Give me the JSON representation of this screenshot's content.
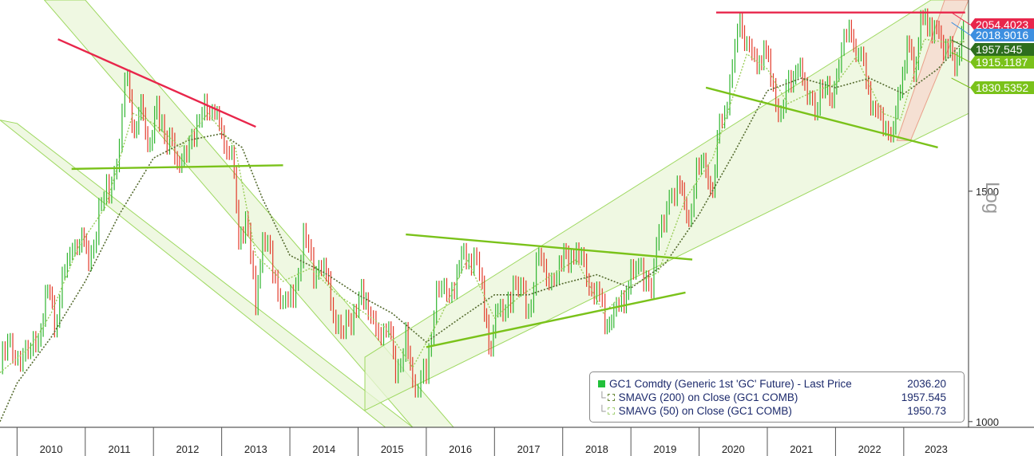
{
  "chart_data": {
    "type": "line",
    "ticker": "GC1 Comdty",
    "scale_label": "Log",
    "x_labels": [
      "2010",
      "2011",
      "2012",
      "2013",
      "2014",
      "2015",
      "2016",
      "2017",
      "2018",
      "2019",
      "2020",
      "2021",
      "2022",
      "2023"
    ],
    "y_ticks": [
      1000,
      1500
    ],
    "y_tick_labels": [
      "1000",
      "1500"
    ],
    "ylim": [
      990,
      2100
    ],
    "xlim": [
      2009.75,
      2023.95
    ],
    "price_series": {
      "name": "GC1 Comdty (Generic 1st 'GC' Future) - Last Price",
      "value_label": "2036.20",
      "points": [
        [
          2009.75,
          1100
        ],
        [
          2009.9,
          1150
        ],
        [
          2010.05,
          1110
        ],
        [
          2010.2,
          1120
        ],
        [
          2010.35,
          1200
        ],
        [
          2010.45,
          1240
        ],
        [
          2010.55,
          1190
        ],
        [
          2010.7,
          1300
        ],
        [
          2010.85,
          1380
        ],
        [
          2010.95,
          1390
        ],
        [
          2011.05,
          1340
        ],
        [
          2011.2,
          1440
        ],
        [
          2011.35,
          1520
        ],
        [
          2011.5,
          1620
        ],
        [
          2011.62,
          1880
        ],
        [
          2011.72,
          1630
        ],
        [
          2011.85,
          1760
        ],
        [
          2011.95,
          1590
        ],
        [
          2012.05,
          1740
        ],
        [
          2012.2,
          1660
        ],
        [
          2012.35,
          1560
        ],
        [
          2012.45,
          1610
        ],
        [
          2012.6,
          1620
        ],
        [
          2012.75,
          1780
        ],
        [
          2012.9,
          1700
        ],
        [
          2013.0,
          1680
        ],
        [
          2013.15,
          1580
        ],
        [
          2013.25,
          1400
        ],
        [
          2013.35,
          1420
        ],
        [
          2013.5,
          1240
        ],
        [
          2013.6,
          1370
        ],
        [
          2013.75,
          1320
        ],
        [
          2013.9,
          1220
        ],
        [
          2014.05,
          1250
        ],
        [
          2014.2,
          1380
        ],
        [
          2014.35,
          1300
        ],
        [
          2014.5,
          1330
        ],
        [
          2014.6,
          1220
        ],
        [
          2014.75,
          1200
        ],
        [
          2014.9,
          1170
        ],
        [
          2015.05,
          1290
        ],
        [
          2015.15,
          1200
        ],
        [
          2015.3,
          1180
        ],
        [
          2015.45,
          1170
        ],
        [
          2015.55,
          1090
        ],
        [
          2015.7,
          1150
        ],
        [
          2015.8,
          1080
        ],
        [
          2015.92,
          1060
        ],
        [
          2016.0,
          1100
        ],
        [
          2016.15,
          1240
        ],
        [
          2016.3,
          1260
        ],
        [
          2016.45,
          1280
        ],
        [
          2016.55,
          1360
        ],
        [
          2016.7,
          1330
        ],
        [
          2016.82,
          1250
        ],
        [
          2016.95,
          1140
        ],
        [
          2017.05,
          1210
        ],
        [
          2017.2,
          1250
        ],
        [
          2017.35,
          1260
        ],
        [
          2017.5,
          1220
        ],
        [
          2017.65,
          1330
        ],
        [
          2017.8,
          1280
        ],
        [
          2017.95,
          1300
        ],
        [
          2018.05,
          1350
        ],
        [
          2018.2,
          1340
        ],
        [
          2018.35,
          1300
        ],
        [
          2018.5,
          1250
        ],
        [
          2018.62,
          1190
        ],
        [
          2018.75,
          1200
        ],
        [
          2018.9,
          1240
        ],
        [
          2019.0,
          1290
        ],
        [
          2019.15,
          1300
        ],
        [
          2019.3,
          1280
        ],
        [
          2019.45,
          1400
        ],
        [
          2019.6,
          1520
        ],
        [
          2019.72,
          1500
        ],
        [
          2019.85,
          1460
        ],
        [
          2020.0,
          1560
        ],
        [
          2020.1,
          1580
        ],
        [
          2020.2,
          1480
        ],
        [
          2020.3,
          1700
        ],
        [
          2020.45,
          1800
        ],
        [
          2020.6,
          2050
        ],
        [
          2020.7,
          1930
        ],
        [
          2020.85,
          1880
        ],
        [
          2020.95,
          1890
        ],
        [
          2021.05,
          1850
        ],
        [
          2021.2,
          1700
        ],
        [
          2021.35,
          1830
        ],
        [
          2021.45,
          1900
        ],
        [
          2021.55,
          1780
        ],
        [
          2021.7,
          1760
        ],
        [
          2021.85,
          1780
        ],
        [
          2021.95,
          1800
        ],
        [
          2022.05,
          1830
        ],
        [
          2022.2,
          2040
        ],
        [
          2022.3,
          1900
        ],
        [
          2022.45,
          1840
        ],
        [
          2022.55,
          1720
        ],
        [
          2022.7,
          1700
        ],
        [
          2022.85,
          1640
        ],
        [
          2022.95,
          1800
        ],
        [
          2023.05,
          1940
        ],
        [
          2023.15,
          1860
        ],
        [
          2023.25,
          2000
        ],
        [
          2023.35,
          2040
        ],
        [
          2023.45,
          1970
        ],
        [
          2023.55,
          1930
        ],
        [
          2023.65,
          1960
        ],
        [
          2023.75,
          1840
        ],
        [
          2023.85,
          1990
        ],
        [
          2023.9,
          2036
        ]
      ]
    },
    "sma200": {
      "name": "SMAVG (200)  on Close (GC1 COMB)",
      "value_label": "1957.545",
      "points": [
        [
          2009.75,
          1000
        ],
        [
          2010.0,
          1070
        ],
        [
          2010.5,
          1160
        ],
        [
          2011.0,
          1280
        ],
        [
          2011.5,
          1440
        ],
        [
          2012.0,
          1590
        ],
        [
          2012.5,
          1640
        ],
        [
          2013.0,
          1660
        ],
        [
          2013.3,
          1620
        ],
        [
          2013.6,
          1480
        ],
        [
          2014.0,
          1340
        ],
        [
          2014.5,
          1300
        ],
        [
          2015.0,
          1250
        ],
        [
          2015.5,
          1210
        ],
        [
          2016.0,
          1150
        ],
        [
          2016.5,
          1200
        ],
        [
          2017.0,
          1250
        ],
        [
          2017.5,
          1250
        ],
        [
          2018.0,
          1275
        ],
        [
          2018.5,
          1295
        ],
        [
          2019.0,
          1265
        ],
        [
          2019.5,
          1320
        ],
        [
          2020.0,
          1440
        ],
        [
          2020.5,
          1600
        ],
        [
          2021.0,
          1790
        ],
        [
          2021.5,
          1830
        ],
        [
          2022.0,
          1800
        ],
        [
          2022.5,
          1830
        ],
        [
          2023.0,
          1780
        ],
        [
          2023.5,
          1860
        ],
        [
          2023.9,
          1958
        ]
      ]
    },
    "sma50": {
      "name": "SMAVG (50)  on Close (GC1 COMB)",
      "value_label": "1950.73",
      "points": [
        [
          2009.75,
          1090
        ],
        [
          2010.2,
          1140
        ],
        [
          2010.5,
          1210
        ],
        [
          2010.9,
          1360
        ],
        [
          2011.3,
          1460
        ],
        [
          2011.7,
          1720
        ],
        [
          2012.0,
          1690
        ],
        [
          2012.4,
          1620
        ],
        [
          2012.8,
          1720
        ],
        [
          2013.2,
          1620
        ],
        [
          2013.5,
          1340
        ],
        [
          2013.9,
          1280
        ],
        [
          2014.3,
          1310
        ],
        [
          2014.7,
          1250
        ],
        [
          2015.0,
          1220
        ],
        [
          2015.4,
          1180
        ],
        [
          2015.8,
          1100
        ],
        [
          2016.2,
          1200
        ],
        [
          2016.6,
          1330
        ],
        [
          2017.0,
          1200
        ],
        [
          2017.4,
          1250
        ],
        [
          2017.8,
          1290
        ],
        [
          2018.2,
          1330
        ],
        [
          2018.6,
          1210
        ],
        [
          2019.0,
          1270
        ],
        [
          2019.4,
          1300
        ],
        [
          2019.8,
          1480
        ],
        [
          2020.2,
          1590
        ],
        [
          2020.7,
          1910
        ],
        [
          2021.0,
          1860
        ],
        [
          2021.3,
          1750
        ],
        [
          2021.7,
          1790
        ],
        [
          2022.0,
          1810
        ],
        [
          2022.3,
          1900
        ],
        [
          2022.7,
          1720
        ],
        [
          2022.95,
          1700
        ],
        [
          2023.3,
          1960
        ],
        [
          2023.6,
          1950
        ],
        [
          2023.9,
          1951
        ]
      ]
    },
    "level_labels": [
      {
        "value": 2054.4023,
        "label": "2054.4023",
        "color": "#e8264b"
      },
      {
        "value": 2018.9016,
        "label": "2018.9016",
        "color": "#3d8fe0"
      },
      {
        "value": 1957.545,
        "label": "1957.545",
        "color": "#2e6e1e"
      },
      {
        "value": 1915.1187,
        "label": "1915.1187",
        "color": "#7ac21a"
      },
      {
        "value": 1830.5352,
        "label": "1830.5352",
        "color": "#7ac21a"
      }
    ],
    "trendlines": [
      {
        "color": "#e8264b",
        "from": [
          2010.6,
          1960
        ],
        "to": [
          2013.5,
          1680
        ]
      },
      {
        "color": "#7ac21a",
        "from": [
          2010.8,
          1560
        ],
        "to": [
          2013.9,
          1570
        ]
      },
      {
        "color": "#7ac21a",
        "from": [
          2015.7,
          1390
        ],
        "to": [
          2019.9,
          1330
        ]
      },
      {
        "color": "#7ac21a",
        "from": [
          2016.0,
          1140
        ],
        "to": [
          2019.8,
          1255
        ]
      },
      {
        "color": "#7ac21a",
        "from": [
          2020.1,
          1800
        ],
        "to": [
          2023.5,
          1620
        ]
      },
      {
        "color": "#e8264b",
        "from": [
          2020.25,
          2054.4
        ],
        "to": [
          2023.9,
          2054.4
        ]
      }
    ],
    "colors": {
      "up": "#2fb52f",
      "down": "#e23a2a",
      "sma200": "#556b2f",
      "sma50": "#9acd5a",
      "channel_fill": "#eaf6d8",
      "channel_edge": "#9ed860"
    }
  }
}
